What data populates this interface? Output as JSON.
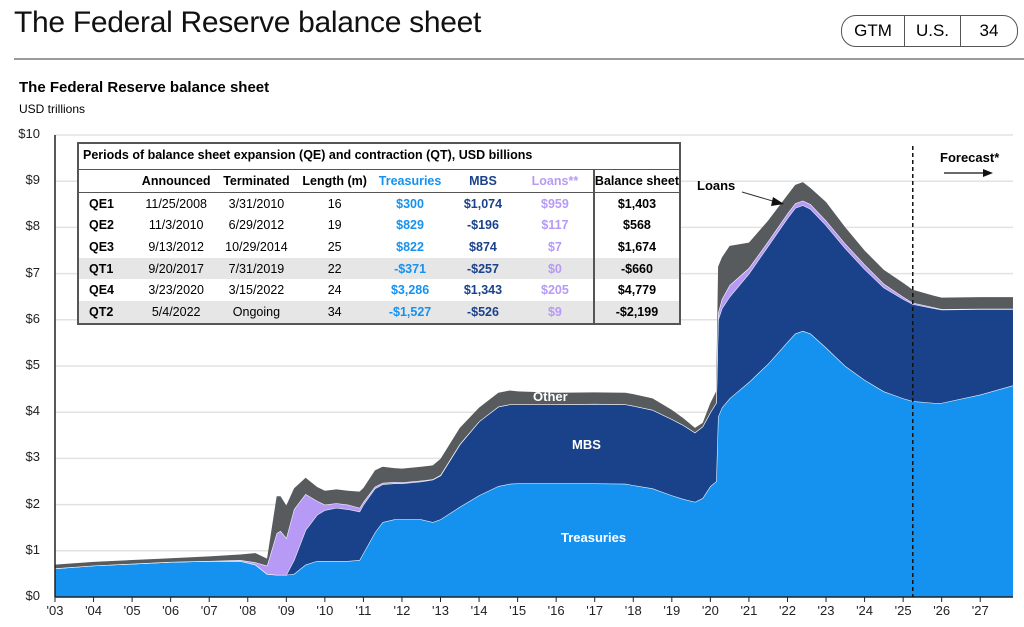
{
  "header": {
    "title": "The Federal Reserve balance sheet",
    "badge": [
      "GTM",
      "U.S.",
      "34"
    ]
  },
  "chart_data": {
    "type": "area",
    "stacked": true,
    "title": "The Federal Reserve balance sheet",
    "ylabel": "USD trillions",
    "xlabel": "",
    "ylim": [
      0,
      10
    ],
    "xlim": [
      2003,
      2027.85
    ],
    "y_ticks": [
      0,
      1,
      2,
      3,
      4,
      5,
      6,
      7,
      8,
      9,
      10
    ],
    "y_tick_labels": [
      "$0",
      "$1",
      "$2",
      "$3",
      "$4",
      "$5",
      "$6",
      "$7",
      "$8",
      "$9",
      "$10"
    ],
    "x_ticks": [
      2003,
      2004,
      2005,
      2006,
      2007,
      2008,
      2009,
      2010,
      2011,
      2012,
      2013,
      2014,
      2015,
      2016,
      2017,
      2018,
      2019,
      2020,
      2021,
      2022,
      2023,
      2024,
      2025,
      2026,
      2027
    ],
    "x_tick_labels": [
      "'03",
      "'04",
      "'05",
      "'06",
      "'07",
      "'08",
      "'09",
      "'10",
      "'11",
      "'12",
      "'13",
      "'14",
      "'15",
      "'16",
      "'17",
      "'18",
      "'19",
      "'20",
      "'21",
      "'22",
      "'23",
      "'24",
      "'25",
      "'26",
      "'27"
    ],
    "grid": "horizontal",
    "forecast_start": 2025.25,
    "x": [
      2003.0,
      2004.0,
      2005.0,
      2006.0,
      2007.0,
      2007.8,
      2008.2,
      2008.5,
      2008.75,
      2008.85,
      2009.0,
      2009.2,
      2009.5,
      2009.8,
      2010.0,
      2010.3,
      2010.6,
      2010.9,
      2011.0,
      2011.3,
      2011.5,
      2011.8,
      2012.0,
      2012.5,
      2012.8,
      2013.0,
      2013.5,
      2014.0,
      2014.5,
      2014.8,
      2015.0,
      2016.0,
      2017.0,
      2017.8,
      2018.0,
      2018.5,
      2019.0,
      2019.3,
      2019.6,
      2019.8,
      2020.0,
      2020.15,
      2020.2,
      2020.3,
      2020.5,
      2021.0,
      2021.5,
      2022.0,
      2022.2,
      2022.4,
      2022.6,
      2023.0,
      2023.5,
      2024.0,
      2024.5,
      2025.0,
      2025.25,
      2025.8,
      2026.0,
      2027.0,
      2027.85
    ],
    "series": [
      {
        "name": "Treasuries",
        "color": "#1592f0",
        "values": [
          0.62,
          0.68,
          0.72,
          0.76,
          0.78,
          0.78,
          0.7,
          0.5,
          0.48,
          0.48,
          0.48,
          0.5,
          0.7,
          0.78,
          0.78,
          0.78,
          0.78,
          0.8,
          0.95,
          1.4,
          1.62,
          1.68,
          1.68,
          1.68,
          1.62,
          1.68,
          1.95,
          2.2,
          2.4,
          2.45,
          2.46,
          2.46,
          2.46,
          2.45,
          2.42,
          2.35,
          2.2,
          2.12,
          2.06,
          2.14,
          2.4,
          2.5,
          3.9,
          4.1,
          4.3,
          4.65,
          5.05,
          5.52,
          5.7,
          5.76,
          5.7,
          5.4,
          5.0,
          4.7,
          4.45,
          4.3,
          4.24,
          4.2,
          4.2,
          4.38,
          4.58
        ]
      },
      {
        "name": "MBS",
        "color": "#1a428a",
        "values": [
          0,
          0,
          0,
          0,
          0,
          0,
          0,
          0,
          0,
          0,
          0.0,
          0.3,
          0.75,
          1.0,
          1.1,
          1.15,
          1.12,
          1.05,
          1.05,
          0.95,
          0.82,
          0.78,
          0.78,
          0.82,
          0.92,
          0.95,
          1.35,
          1.6,
          1.72,
          1.72,
          1.71,
          1.71,
          1.72,
          1.72,
          1.72,
          1.7,
          1.65,
          1.6,
          1.5,
          1.55,
          1.6,
          1.7,
          2.1,
          2.15,
          2.2,
          2.35,
          2.55,
          2.68,
          2.72,
          2.72,
          2.7,
          2.65,
          2.55,
          2.4,
          2.25,
          2.15,
          2.1,
          2.05,
          2.02,
          1.85,
          1.65
        ]
      },
      {
        "name": "Loans",
        "color": "#b79af5",
        "values": [
          0,
          0,
          0,
          0,
          0,
          0.02,
          0.05,
          0.18,
          0.9,
          0.95,
          0.8,
          1.1,
          0.78,
          0.3,
          0.12,
          0.1,
          0.1,
          0.08,
          0.06,
          0.04,
          0.03,
          0.03,
          0.02,
          0.02,
          0.01,
          0.01,
          0.01,
          0,
          0,
          0,
          0,
          0,
          0,
          0,
          0,
          0,
          0,
          0,
          0,
          0,
          0,
          0,
          0.15,
          0.2,
          0.25,
          0.12,
          0.1,
          0.1,
          0.1,
          0.1,
          0.1,
          0.1,
          0.1,
          0.1,
          0.08,
          0.05,
          0.03,
          0.02,
          0.01,
          0.01,
          0.01
        ]
      },
      {
        "name": "Other",
        "color": "#585b5e",
        "values": [
          0.08,
          0.08,
          0.08,
          0.08,
          0.1,
          0.12,
          0.2,
          0.15,
          0.8,
          0.75,
          0.7,
          0.45,
          0.35,
          0.3,
          0.3,
          0.3,
          0.3,
          0.35,
          0.3,
          0.35,
          0.35,
          0.3,
          0.3,
          0.3,
          0.3,
          0.35,
          0.35,
          0.3,
          0.3,
          0.3,
          0.28,
          0.25,
          0.25,
          0.25,
          0.25,
          0.25,
          0.2,
          0.15,
          0.1,
          0.08,
          0.2,
          0.25,
          1.0,
          0.9,
          0.85,
          0.55,
          0.45,
          0.4,
          0.4,
          0.4,
          0.35,
          0.4,
          0.35,
          0.3,
          0.3,
          0.3,
          0.28,
          0.25,
          0.25,
          0.25,
          0.25
        ]
      }
    ],
    "annotations": {
      "loans": "Loans",
      "other": "Other",
      "mbs": "MBS",
      "treasuries": "Treasuries",
      "forecast": "Forecast*"
    },
    "table": {
      "caption": "Periods of balance sheet expansion (QE) and contraction (QT), USD billions",
      "columns": [
        "",
        "Announced",
        "Terminated",
        "Length (m)",
        "Treasuries",
        "MBS",
        "Loans**",
        "Balance sheet"
      ],
      "rows": [
        {
          "label": "QE1",
          "announced": "11/25/2008",
          "terminated": "3/31/2010",
          "length": "16",
          "treasuries": "$300",
          "mbs": "$1,074",
          "loans": "$959",
          "balance": "$1,403"
        },
        {
          "label": "QE2",
          "announced": "11/3/2010",
          "terminated": "6/29/2012",
          "length": "19",
          "treasuries": "$829",
          "mbs": "-$196",
          "loans": "$117",
          "balance": "$568"
        },
        {
          "label": "QE3",
          "announced": "9/13/2012",
          "terminated": "10/29/2014",
          "length": "25",
          "treasuries": "$822",
          "mbs": "$874",
          "loans": "$7",
          "balance": "$1,674"
        },
        {
          "label": "QT1",
          "announced": "9/20/2017",
          "terminated": "7/31/2019",
          "length": "22",
          "treasuries": "-$371",
          "mbs": "-$257",
          "loans": "$0",
          "balance": "-$660"
        },
        {
          "label": "QE4",
          "announced": "3/23/2020",
          "terminated": "3/15/2022",
          "length": "24",
          "treasuries": "$3,286",
          "mbs": "$1,343",
          "loans": "$205",
          "balance": "$4,779"
        },
        {
          "label": "QT2",
          "announced": "5/4/2022",
          "terminated": "Ongoing",
          "length": "34",
          "treasuries": "-$1,527",
          "mbs": "-$526",
          "loans": "$9",
          "balance": "-$2,199"
        }
      ]
    }
  }
}
